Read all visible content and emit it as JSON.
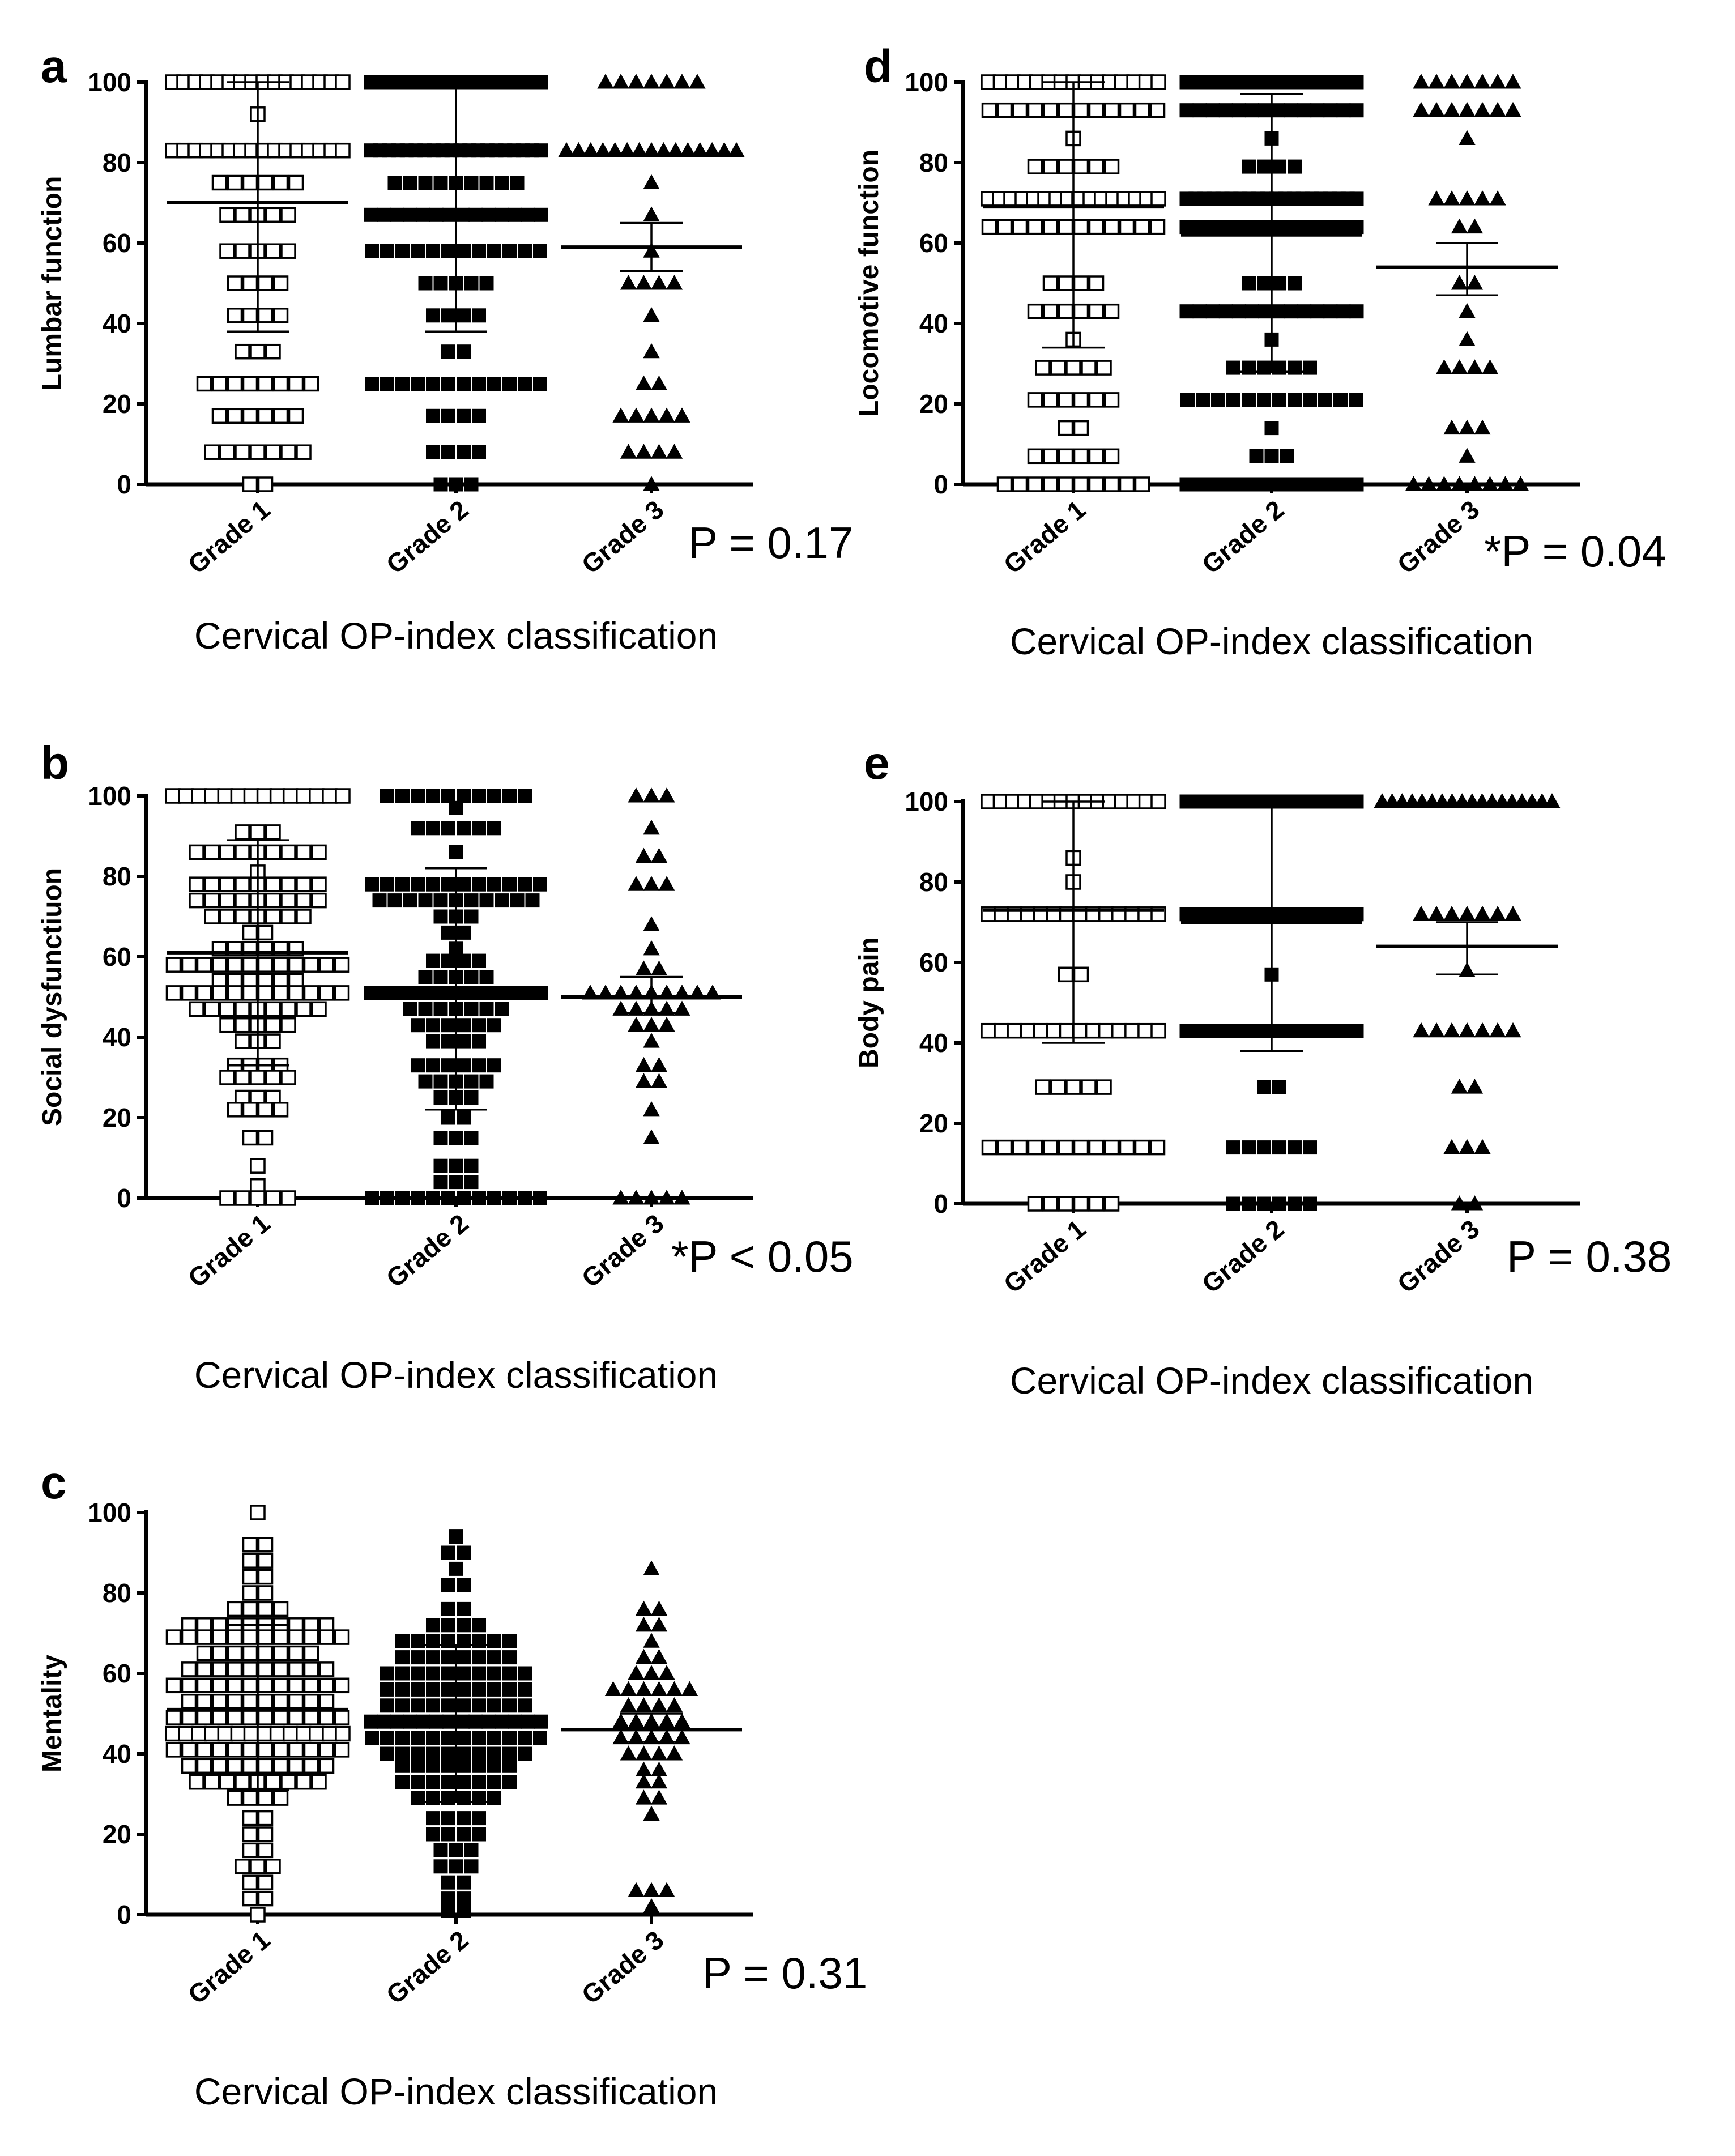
{
  "figure": {
    "x_axis_title": "Cervical OP-index classification"
  },
  "chart_data": [
    {
      "panel": "a",
      "type": "scatter",
      "ylabel": "Lumbar function",
      "xlabel": "Cervical OP-index classification",
      "categories": [
        "Grade 1",
        "Grade 2",
        "Grade 3"
      ],
      "yticks": [
        "0",
        "20",
        "40",
        "60",
        "80",
        "100"
      ],
      "ylim": [
        0,
        100
      ],
      "p_value": "P = 0.17",
      "markers": [
        "open-square",
        "filled-square",
        "filled-triangle"
      ],
      "series": [
        {
          "name": "Grade 1",
          "mean": 70,
          "sd_low": 38,
          "sd_high": 100,
          "points": [
            [
              100,
              16
            ],
            [
              92,
              1
            ],
            [
              83,
              16
            ],
            [
              75,
              6
            ],
            [
              67,
              5
            ],
            [
              58,
              5
            ],
            [
              50,
              4
            ],
            [
              42,
              4
            ],
            [
              33,
              3
            ],
            [
              25,
              8
            ],
            [
              17,
              6
            ],
            [
              8,
              7
            ],
            [
              0,
              2
            ]
          ]
        },
        {
          "name": "Grade 2",
          "mean": 68,
          "sd_low": 38,
          "sd_high": 100,
          "points": [
            [
              100,
              30
            ],
            [
              83,
              20
            ],
            [
              75,
              9
            ],
            [
              67,
              14
            ],
            [
              58,
              12
            ],
            [
              50,
              5
            ],
            [
              42,
              4
            ],
            [
              33,
              2
            ],
            [
              25,
              12
            ],
            [
              17,
              4
            ],
            [
              8,
              4
            ],
            [
              0,
              3
            ]
          ]
        },
        {
          "name": "Grade 3",
          "mean": 59,
          "sd_low": 53,
          "sd_high": 65,
          "points": [
            [
              100,
              7
            ],
            [
              83,
              15
            ],
            [
              75,
              1
            ],
            [
              67,
              1
            ],
            [
              58,
              1
            ],
            [
              50,
              4
            ],
            [
              42,
              1
            ],
            [
              33,
              1
            ],
            [
              25,
              2
            ],
            [
              17,
              5
            ],
            [
              8,
              4
            ],
            [
              0,
              1
            ]
          ]
        }
      ]
    },
    {
      "panel": "b",
      "type": "scatter",
      "ylabel": "Social dysfunctiuon",
      "xlabel": "Cervical OP-index classification",
      "categories": [
        "Grade 1",
        "Grade 2",
        "Grade 3"
      ],
      "yticks": [
        "0",
        "20",
        "40",
        "60",
        "80",
        "100"
      ],
      "ylim": [
        0,
        100
      ],
      "p_value": "*P < 0.05",
      "markers": [
        "open-square",
        "filled-square",
        "filled-triangle"
      ],
      "series": [
        {
          "name": "Grade 1",
          "mean": 61,
          "sd_low": 33,
          "sd_high": 89,
          "points": [
            [
              100,
              14
            ],
            [
              91,
              3
            ],
            [
              86,
              9
            ],
            [
              81,
              1
            ],
            [
              78,
              9
            ],
            [
              74,
              9
            ],
            [
              70,
              7
            ],
            [
              66,
              2
            ],
            [
              62,
              6
            ],
            [
              58,
              12
            ],
            [
              54,
              6
            ],
            [
              51,
              12
            ],
            [
              47,
              9
            ],
            [
              43,
              5
            ],
            [
              39,
              3
            ],
            [
              33,
              4
            ],
            [
              30,
              5
            ],
            [
              25,
              3
            ],
            [
              22,
              4
            ],
            [
              15,
              2
            ],
            [
              8,
              1
            ],
            [
              3,
              1
            ],
            [
              0,
              5
            ]
          ]
        },
        {
          "name": "Grade 2",
          "mean": 52,
          "sd_low": 22,
          "sd_high": 82,
          "points": [
            [
              100,
              10
            ],
            [
              97,
              1
            ],
            [
              92,
              6
            ],
            [
              86,
              1
            ],
            [
              78,
              12
            ],
            [
              74,
              11
            ],
            [
              70,
              3
            ],
            [
              66,
              2
            ],
            [
              62,
              1
            ],
            [
              59,
              4
            ],
            [
              55,
              5
            ],
            [
              51,
              16
            ],
            [
              47,
              7
            ],
            [
              43,
              6
            ],
            [
              39,
              4
            ],
            [
              33,
              6
            ],
            [
              29,
              5
            ],
            [
              25,
              3
            ],
            [
              20,
              2
            ],
            [
              15,
              3
            ],
            [
              8,
              3
            ],
            [
              4,
              3
            ],
            [
              0,
              12
            ]
          ]
        },
        {
          "name": "Grade 3",
          "mean": 50,
          "sd_low": 46,
          "sd_high": 55,
          "points": [
            [
              100,
              3
            ],
            [
              92,
              1
            ],
            [
              85,
              2
            ],
            [
              78,
              3
            ],
            [
              68,
              1
            ],
            [
              62,
              1
            ],
            [
              57,
              2
            ],
            [
              51,
              9
            ],
            [
              47,
              5
            ],
            [
              43,
              3
            ],
            [
              39,
              1
            ],
            [
              33,
              2
            ],
            [
              29,
              2
            ],
            [
              22,
              1
            ],
            [
              15,
              1
            ],
            [
              0,
              5
            ]
          ]
        }
      ]
    },
    {
      "panel": "c",
      "type": "scatter",
      "ylabel": "Mentality",
      "xlabel": "Cervical OP-index classification",
      "categories": [
        "Grade 1",
        "Grade 2",
        "Grade 3"
      ],
      "yticks": [
        "0",
        "20",
        "40",
        "60",
        "80",
        "100"
      ],
      "ylim": [
        0,
        100
      ],
      "p_value": "P = 0.31",
      "markers": [
        "open-square",
        "filled-square",
        "filled-triangle"
      ],
      "series": [
        {
          "name": "Grade 1",
          "mean": 51,
          "sd_low": 31,
          "sd_high": 72,
          "points": [
            [
              100,
              1
            ],
            [
              92,
              2
            ],
            [
              88,
              2
            ],
            [
              84,
              2
            ],
            [
              80,
              2
            ],
            [
              76,
              4
            ],
            [
              72,
              10
            ],
            [
              69,
              12
            ],
            [
              65,
              8
            ],
            [
              61,
              10
            ],
            [
              57,
              12
            ],
            [
              53,
              10
            ],
            [
              49,
              12
            ],
            [
              45,
              14
            ],
            [
              41,
              12
            ],
            [
              37,
              10
            ],
            [
              33,
              9
            ],
            [
              29,
              4
            ],
            [
              24,
              2
            ],
            [
              20,
              2
            ],
            [
              16,
              2
            ],
            [
              12,
              3
            ],
            [
              8,
              2
            ],
            [
              4,
              2
            ],
            [
              0,
              1
            ]
          ]
        },
        {
          "name": "Grade 2",
          "mean": 48,
          "sd_low": 28,
          "sd_high": 67,
          "points": [
            [
              94,
              1
            ],
            [
              90,
              2
            ],
            [
              86,
              1
            ],
            [
              82,
              2
            ],
            [
              76,
              2
            ],
            [
              72,
              4
            ],
            [
              68,
              8
            ],
            [
              64,
              8
            ],
            [
              60,
              10
            ],
            [
              56,
              10
            ],
            [
              52,
              10
            ],
            [
              48,
              14
            ],
            [
              44,
              12
            ],
            [
              40,
              10
            ],
            [
              37,
              8
            ],
            [
              33,
              8
            ],
            [
              29,
              6
            ],
            [
              24,
              4
            ],
            [
              20,
              4
            ],
            [
              16,
              3
            ],
            [
              12,
              3
            ],
            [
              8,
              2
            ],
            [
              4,
              2
            ],
            [
              1,
              2
            ]
          ]
        },
        {
          "name": "Grade 3",
          "mean": 46,
          "sd_low": 43,
          "sd_high": 50,
          "points": [
            [
              86,
              1
            ],
            [
              76,
              2
            ],
            [
              72,
              2
            ],
            [
              68,
              1
            ],
            [
              64,
              2
            ],
            [
              60,
              3
            ],
            [
              56,
              6
            ],
            [
              52,
              4
            ],
            [
              48,
              5
            ],
            [
              44,
              5
            ],
            [
              40,
              4
            ],
            [
              36,
              2
            ],
            [
              33,
              2
            ],
            [
              29,
              2
            ],
            [
              25,
              1
            ],
            [
              6,
              3
            ],
            [
              2,
              1
            ]
          ]
        }
      ]
    },
    {
      "panel": "d",
      "type": "scatter",
      "ylabel": "Locomotive function",
      "xlabel": "Cervical OP-index classification",
      "categories": [
        "Grade 1",
        "Grade 2",
        "Grade 3"
      ],
      "yticks": [
        "0",
        "20",
        "40",
        "60",
        "80",
        "100"
      ],
      "ylim": [
        0,
        100
      ],
      "p_value": "*P = 0.04",
      "markers": [
        "open-square",
        "filled-square",
        "filled-triangle"
      ],
      "series": [
        {
          "name": "Grade 1",
          "mean": 69,
          "sd_low": 34,
          "sd_high": 100,
          "points": [
            [
              100,
              15
            ],
            [
              93,
              12
            ],
            [
              86,
              1
            ],
            [
              79,
              6
            ],
            [
              71,
              16
            ],
            [
              64,
              12
            ],
            [
              50,
              4
            ],
            [
              43,
              6
            ],
            [
              36,
              1
            ],
            [
              29,
              5
            ],
            [
              21,
              6
            ],
            [
              14,
              2
            ],
            [
              7,
              6
            ],
            [
              0,
              10
            ]
          ]
        },
        {
          "name": "Grade 2",
          "mean": 62,
          "sd_low": 28,
          "sd_high": 97,
          "points": [
            [
              100,
              24
            ],
            [
              93,
              14
            ],
            [
              86,
              1
            ],
            [
              79,
              4
            ],
            [
              71,
              20
            ],
            [
              64,
              16
            ],
            [
              50,
              4
            ],
            [
              43,
              14
            ],
            [
              36,
              1
            ],
            [
              29,
              6
            ],
            [
              21,
              12
            ],
            [
              14,
              1
            ],
            [
              7,
              3
            ],
            [
              0,
              20
            ]
          ]
        },
        {
          "name": "Grade 3",
          "mean": 54,
          "sd_low": 47,
          "sd_high": 60,
          "points": [
            [
              100,
              7
            ],
            [
              93,
              7
            ],
            [
              86,
              1
            ],
            [
              71,
              5
            ],
            [
              64,
              2
            ],
            [
              50,
              2
            ],
            [
              43,
              1
            ],
            [
              36,
              1
            ],
            [
              29,
              4
            ],
            [
              14,
              3
            ],
            [
              7,
              1
            ],
            [
              0,
              8
            ]
          ]
        }
      ]
    },
    {
      "panel": "e",
      "type": "scatter",
      "ylabel": "Body pain",
      "xlabel": "Cervical OP-index classification",
      "categories": [
        "Grade 1",
        "Grade 2",
        "Grade 3"
      ],
      "yticks": [
        "0",
        "20",
        "40",
        "60",
        "80",
        "100"
      ],
      "ylim": [
        0,
        100
      ],
      "p_value": "P = 0.38",
      "markers": [
        "open-square",
        "filled-square",
        "filled-triangle"
      ],
      "series": [
        {
          "name": "Grade 1",
          "mean": 73,
          "sd_low": 40,
          "sd_high": 100,
          "points": [
            [
              100,
              15
            ],
            [
              86,
              1
            ],
            [
              80,
              1
            ],
            [
              72,
              14
            ],
            [
              57,
              2
            ],
            [
              43,
              14
            ],
            [
              29,
              5
            ],
            [
              14,
              12
            ],
            [
              0,
              6
            ]
          ]
        },
        {
          "name": "Grade 2",
          "mean": 70,
          "sd_low": 38,
          "sd_high": 100,
          "points": [
            [
              100,
              30
            ],
            [
              72,
              30
            ],
            [
              57,
              1
            ],
            [
              43,
              30
            ],
            [
              29,
              2
            ],
            [
              14,
              6
            ],
            [
              0,
              6
            ]
          ]
        },
        {
          "name": "Grade 3",
          "mean": 64,
          "sd_low": 57,
          "sd_high": 70,
          "points": [
            [
              100,
              18
            ],
            [
              72,
              7
            ],
            [
              58,
              1
            ],
            [
              43,
              7
            ],
            [
              29,
              2
            ],
            [
              14,
              3
            ],
            [
              0,
              2
            ]
          ]
        }
      ]
    }
  ]
}
